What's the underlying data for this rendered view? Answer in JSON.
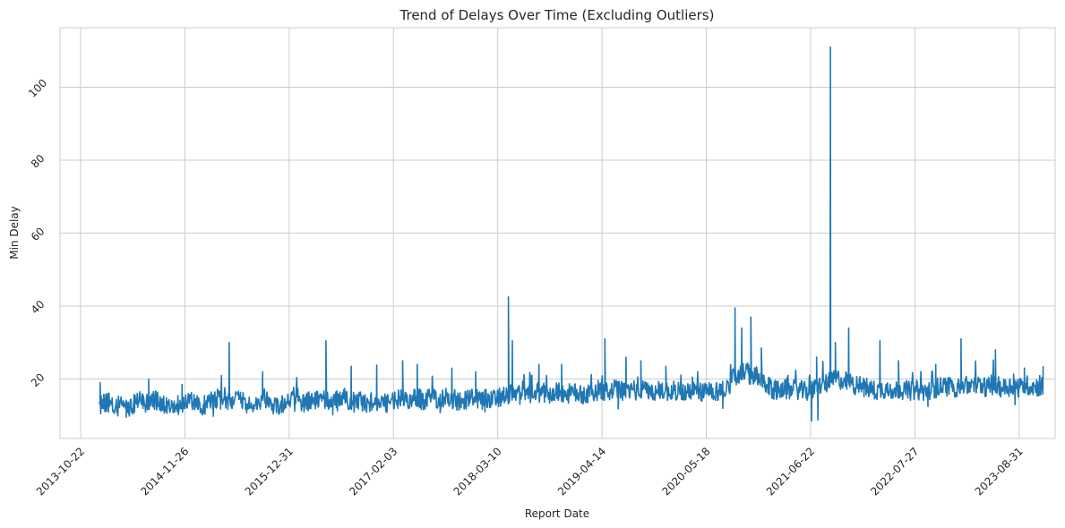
{
  "chart_data": {
    "type": "line",
    "title": "Trend of Delays Over Time (Excluding Outliers)",
    "xlabel": "Report Date",
    "ylabel": "Min Delay",
    "x_type": "date",
    "xlim": [
      "2013-08-04",
      "2024-01-16"
    ],
    "ylim": [
      3.7,
      116.3
    ],
    "x_ticks": [
      "2013-10-22",
      "2014-11-26",
      "2015-12-31",
      "2017-02-03",
      "2018-03-10",
      "2019-04-14",
      "2020-05-18",
      "2021-06-22",
      "2022-07-27",
      "2023-08-31"
    ],
    "y_ticks": [
      20,
      40,
      60,
      80,
      100
    ],
    "grid": true,
    "color": "#1f77b4",
    "series": [
      {
        "points": [
          [
            "2014-01-01",
            12.5
          ],
          [
            "2014-02-01",
            14.0
          ],
          [
            "2014-03-01",
            11.8
          ],
          [
            "2014-04-01",
            13.5
          ],
          [
            "2014-05-01",
            12.2
          ],
          [
            "2014-06-01",
            14.5
          ],
          [
            "2014-07-01",
            13.0
          ],
          [
            "2014-08-01",
            14.2
          ],
          [
            "2014-09-01",
            12.8
          ],
          [
            "2014-10-01",
            13.6
          ],
          [
            "2014-11-01",
            12.9
          ],
          [
            "2014-12-01",
            14.1
          ],
          [
            "2015-01-01",
            13.2
          ],
          [
            "2015-02-01",
            12.6
          ],
          [
            "2015-03-01",
            13.8
          ],
          [
            "2015-04-01",
            14.5
          ],
          [
            "2015-05-01",
            13.4
          ],
          [
            "2015-06-01",
            14.8
          ],
          [
            "2015-07-01",
            13.7
          ],
          [
            "2015-08-01",
            12.9
          ],
          [
            "2015-09-01",
            13.5
          ],
          [
            "2015-10-01",
            14.2
          ],
          [
            "2015-11-01",
            13.1
          ],
          [
            "2015-12-01",
            12.8
          ],
          [
            "2016-01-01",
            13.6
          ],
          [
            "2016-02-01",
            14.0
          ],
          [
            "2016-03-01",
            13.2
          ],
          [
            "2016-04-01",
            14.6
          ],
          [
            "2016-05-01",
            13.9
          ],
          [
            "2016-06-01",
            14.3
          ],
          [
            "2016-07-01",
            13.5
          ],
          [
            "2016-08-01",
            14.8
          ],
          [
            "2016-09-01",
            13.6
          ],
          [
            "2016-10-01",
            14.2
          ],
          [
            "2016-11-01",
            13.1
          ],
          [
            "2016-12-01",
            14.0
          ],
          [
            "2017-01-01",
            13.4
          ],
          [
            "2017-02-01",
            14.1
          ],
          [
            "2017-03-01",
            14.6
          ],
          [
            "2017-04-01",
            13.8
          ],
          [
            "2017-05-01",
            14.9
          ],
          [
            "2017-06-01",
            14.2
          ],
          [
            "2017-07-01",
            15.1
          ],
          [
            "2017-08-01",
            14.4
          ],
          [
            "2017-09-01",
            15.0
          ],
          [
            "2017-10-01",
            14.3
          ],
          [
            "2017-11-01",
            13.9
          ],
          [
            "2017-12-01",
            14.7
          ],
          [
            "2018-01-01",
            14.1
          ],
          [
            "2018-02-01",
            14.8
          ],
          [
            "2018-03-01",
            14.3
          ],
          [
            "2018-04-01",
            15.2
          ],
          [
            "2018-05-01",
            16.0
          ],
          [
            "2018-06-01",
            15.4
          ],
          [
            "2018-07-01",
            16.1
          ],
          [
            "2018-08-01",
            15.6
          ],
          [
            "2018-09-01",
            16.3
          ],
          [
            "2018-10-01",
            15.8
          ],
          [
            "2018-11-01",
            16.5
          ],
          [
            "2018-12-01",
            15.9
          ],
          [
            "2019-01-01",
            16.2
          ],
          [
            "2019-02-01",
            15.7
          ],
          [
            "2019-03-01",
            16.4
          ],
          [
            "2019-04-01",
            16.9
          ],
          [
            "2019-05-01",
            16.3
          ],
          [
            "2019-06-01",
            17.1
          ],
          [
            "2019-07-01",
            16.6
          ],
          [
            "2019-08-01",
            17.2
          ],
          [
            "2019-09-01",
            16.8
          ],
          [
            "2019-10-01",
            17.0
          ],
          [
            "2019-11-01",
            16.4
          ],
          [
            "2019-12-01",
            16.9
          ],
          [
            "2020-01-01",
            16.5
          ],
          [
            "2020-02-01",
            17.0
          ],
          [
            "2020-03-01",
            16.2
          ],
          [
            "2020-04-01",
            16.8
          ],
          [
            "2020-05-01",
            16.4
          ],
          [
            "2020-06-01",
            17.1
          ],
          [
            "2020-07-01",
            16.6
          ],
          [
            "2020-08-01",
            17.3
          ],
          [
            "2020-09-01",
            20.5
          ],
          [
            "2020-10-01",
            22.0
          ],
          [
            "2020-11-01",
            21.2
          ],
          [
            "2020-12-01",
            20.3
          ],
          [
            "2021-01-01",
            18.2
          ],
          [
            "2021-02-01",
            16.9
          ],
          [
            "2021-03-01",
            17.5
          ],
          [
            "2021-04-01",
            16.8
          ],
          [
            "2021-05-01",
            17.2
          ],
          [
            "2021-06-01",
            16.5
          ],
          [
            "2021-07-01",
            17.1
          ],
          [
            "2021-08-01",
            18.4
          ],
          [
            "2021-09-01",
            19.0
          ],
          [
            "2021-10-01",
            20.1
          ],
          [
            "2021-11-01",
            19.4
          ],
          [
            "2021-12-01",
            18.6
          ],
          [
            "2022-01-01",
            18.0
          ],
          [
            "2022-02-01",
            17.2
          ],
          [
            "2022-03-01",
            16.8
          ],
          [
            "2022-04-01",
            17.4
          ],
          [
            "2022-05-01",
            16.9
          ],
          [
            "2022-06-01",
            17.3
          ],
          [
            "2022-07-01",
            16.7
          ],
          [
            "2022-08-01",
            17.0
          ],
          [
            "2022-09-01",
            16.5
          ],
          [
            "2022-10-01",
            17.4
          ],
          [
            "2022-11-01",
            17.8
          ],
          [
            "2022-12-01",
            18.1
          ],
          [
            "2023-01-01",
            17.6
          ],
          [
            "2023-02-01",
            18.3
          ],
          [
            "2023-03-01",
            17.9
          ],
          [
            "2023-04-01",
            18.4
          ],
          [
            "2023-05-01",
            17.8
          ],
          [
            "2023-06-01",
            18.1
          ],
          [
            "2023-07-01",
            17.5
          ],
          [
            "2023-08-01",
            18.2
          ],
          [
            "2023-09-01",
            17.7
          ],
          [
            "2023-10-01",
            18.3
          ],
          [
            "2023-11-01",
            17.9
          ],
          [
            "2023-12-01",
            18.0
          ]
        ],
        "spikes": [
          [
            "2014-01-05",
            19.0
          ],
          [
            "2014-07-10",
            20.0
          ],
          [
            "2014-11-15",
            18.5
          ],
          [
            "2015-04-15",
            21.0
          ],
          [
            "2015-05-15",
            30.0
          ],
          [
            "2015-09-20",
            22.0
          ],
          [
            "2016-05-20",
            30.5
          ],
          [
            "2016-08-25",
            23.5
          ],
          [
            "2016-12-01",
            23.8
          ],
          [
            "2017-03-10",
            25.0
          ],
          [
            "2017-05-05",
            24.0
          ],
          [
            "2017-09-15",
            23.0
          ],
          [
            "2017-12-15",
            22.0
          ],
          [
            "2018-04-20",
            42.5
          ],
          [
            "2018-05-05",
            30.5
          ],
          [
            "2018-08-15",
            24.0
          ],
          [
            "2018-11-10",
            24.0
          ],
          [
            "2019-04-25",
            31.0
          ],
          [
            "2019-07-15",
            26.0
          ],
          [
            "2019-09-10",
            25.0
          ],
          [
            "2019-12-15",
            23.5
          ],
          [
            "2020-04-15",
            22.0
          ],
          [
            "2020-09-05",
            39.5
          ],
          [
            "2020-10-01",
            34.0
          ],
          [
            "2020-11-05",
            37.0
          ],
          [
            "2020-12-15",
            28.5
          ],
          [
            "2021-07-15",
            26.0
          ],
          [
            "2021-09-06",
            111.0
          ],
          [
            "2021-09-25",
            30.0
          ],
          [
            "2021-11-15",
            34.0
          ],
          [
            "2022-03-15",
            30.5
          ],
          [
            "2022-05-25",
            25.0
          ],
          [
            "2022-10-15",
            24.0
          ],
          [
            "2023-01-20",
            31.0
          ],
          [
            "2023-06-01",
            28.0
          ],
          [
            "2023-09-20",
            23.0
          ],
          [
            "2023-12-01",
            23.5
          ]
        ],
        "dips": [
          [
            "2014-04-15",
            9.5
          ],
          [
            "2015-03-15",
            9.8
          ],
          [
            "2016-06-15",
            10.2
          ],
          [
            "2017-08-01",
            10.8
          ],
          [
            "2018-01-20",
            11.0
          ],
          [
            "2019-06-15",
            11.8
          ],
          [
            "2020-07-20",
            12.0
          ],
          [
            "2021-06-26",
            8.5
          ],
          [
            "2021-07-20",
            8.8
          ],
          [
            "2022-09-15",
            12.5
          ],
          [
            "2023-08-15",
            13.0
          ]
        ]
      }
    ]
  }
}
